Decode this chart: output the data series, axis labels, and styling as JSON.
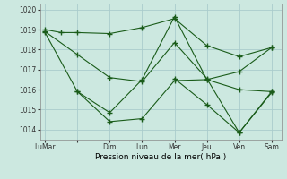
{
  "xlabel": "Pression niveau de la mer( hPa )",
  "background_color": "#cce8e0",
  "grid_color": "#aacccc",
  "line_color": "#1a5c1a",
  "ylim": [
    1013.5,
    1020.3
  ],
  "yticks": [
    1014,
    1015,
    1016,
    1017,
    1018,
    1019,
    1020
  ],
  "x_tick_positions": [
    0,
    1,
    2,
    3,
    4,
    5,
    6,
    7
  ],
  "x_tick_labels": [
    "LuMar",
    "",
    "Dim",
    "Lun",
    "Mer",
    "Jeu",
    "Ven",
    "Sam"
  ],
  "series": [
    {
      "x": [
        0,
        0.5,
        1,
        2,
        3,
        4,
        5,
        6,
        7
      ],
      "y": [
        1019.0,
        1018.85,
        1018.85,
        1018.8,
        1019.1,
        1019.55,
        1018.2,
        1017.65,
        1018.1
      ]
    },
    {
      "x": [
        0,
        1,
        2,
        3,
        4,
        5,
        6,
        7
      ],
      "y": [
        1018.9,
        1017.75,
        1016.6,
        1016.4,
        1018.35,
        1016.55,
        1013.85,
        1015.9
      ]
    },
    {
      "x": [
        0,
        1,
        2,
        3,
        4,
        5,
        6,
        7
      ],
      "y": [
        1018.85,
        1015.9,
        1014.4,
        1014.55,
        1016.45,
        1016.5,
        1016.9,
        1018.1
      ]
    },
    {
      "x": [
        1,
        2,
        3,
        4,
        5,
        6,
        7
      ],
      "y": [
        1015.9,
        1014.85,
        1016.5,
        1019.65,
        1016.5,
        1016.0,
        1015.9
      ]
    },
    {
      "x": [
        4,
        5,
        6,
        7
      ],
      "y": [
        1016.55,
        1015.25,
        1013.85,
        1015.85
      ]
    }
  ]
}
